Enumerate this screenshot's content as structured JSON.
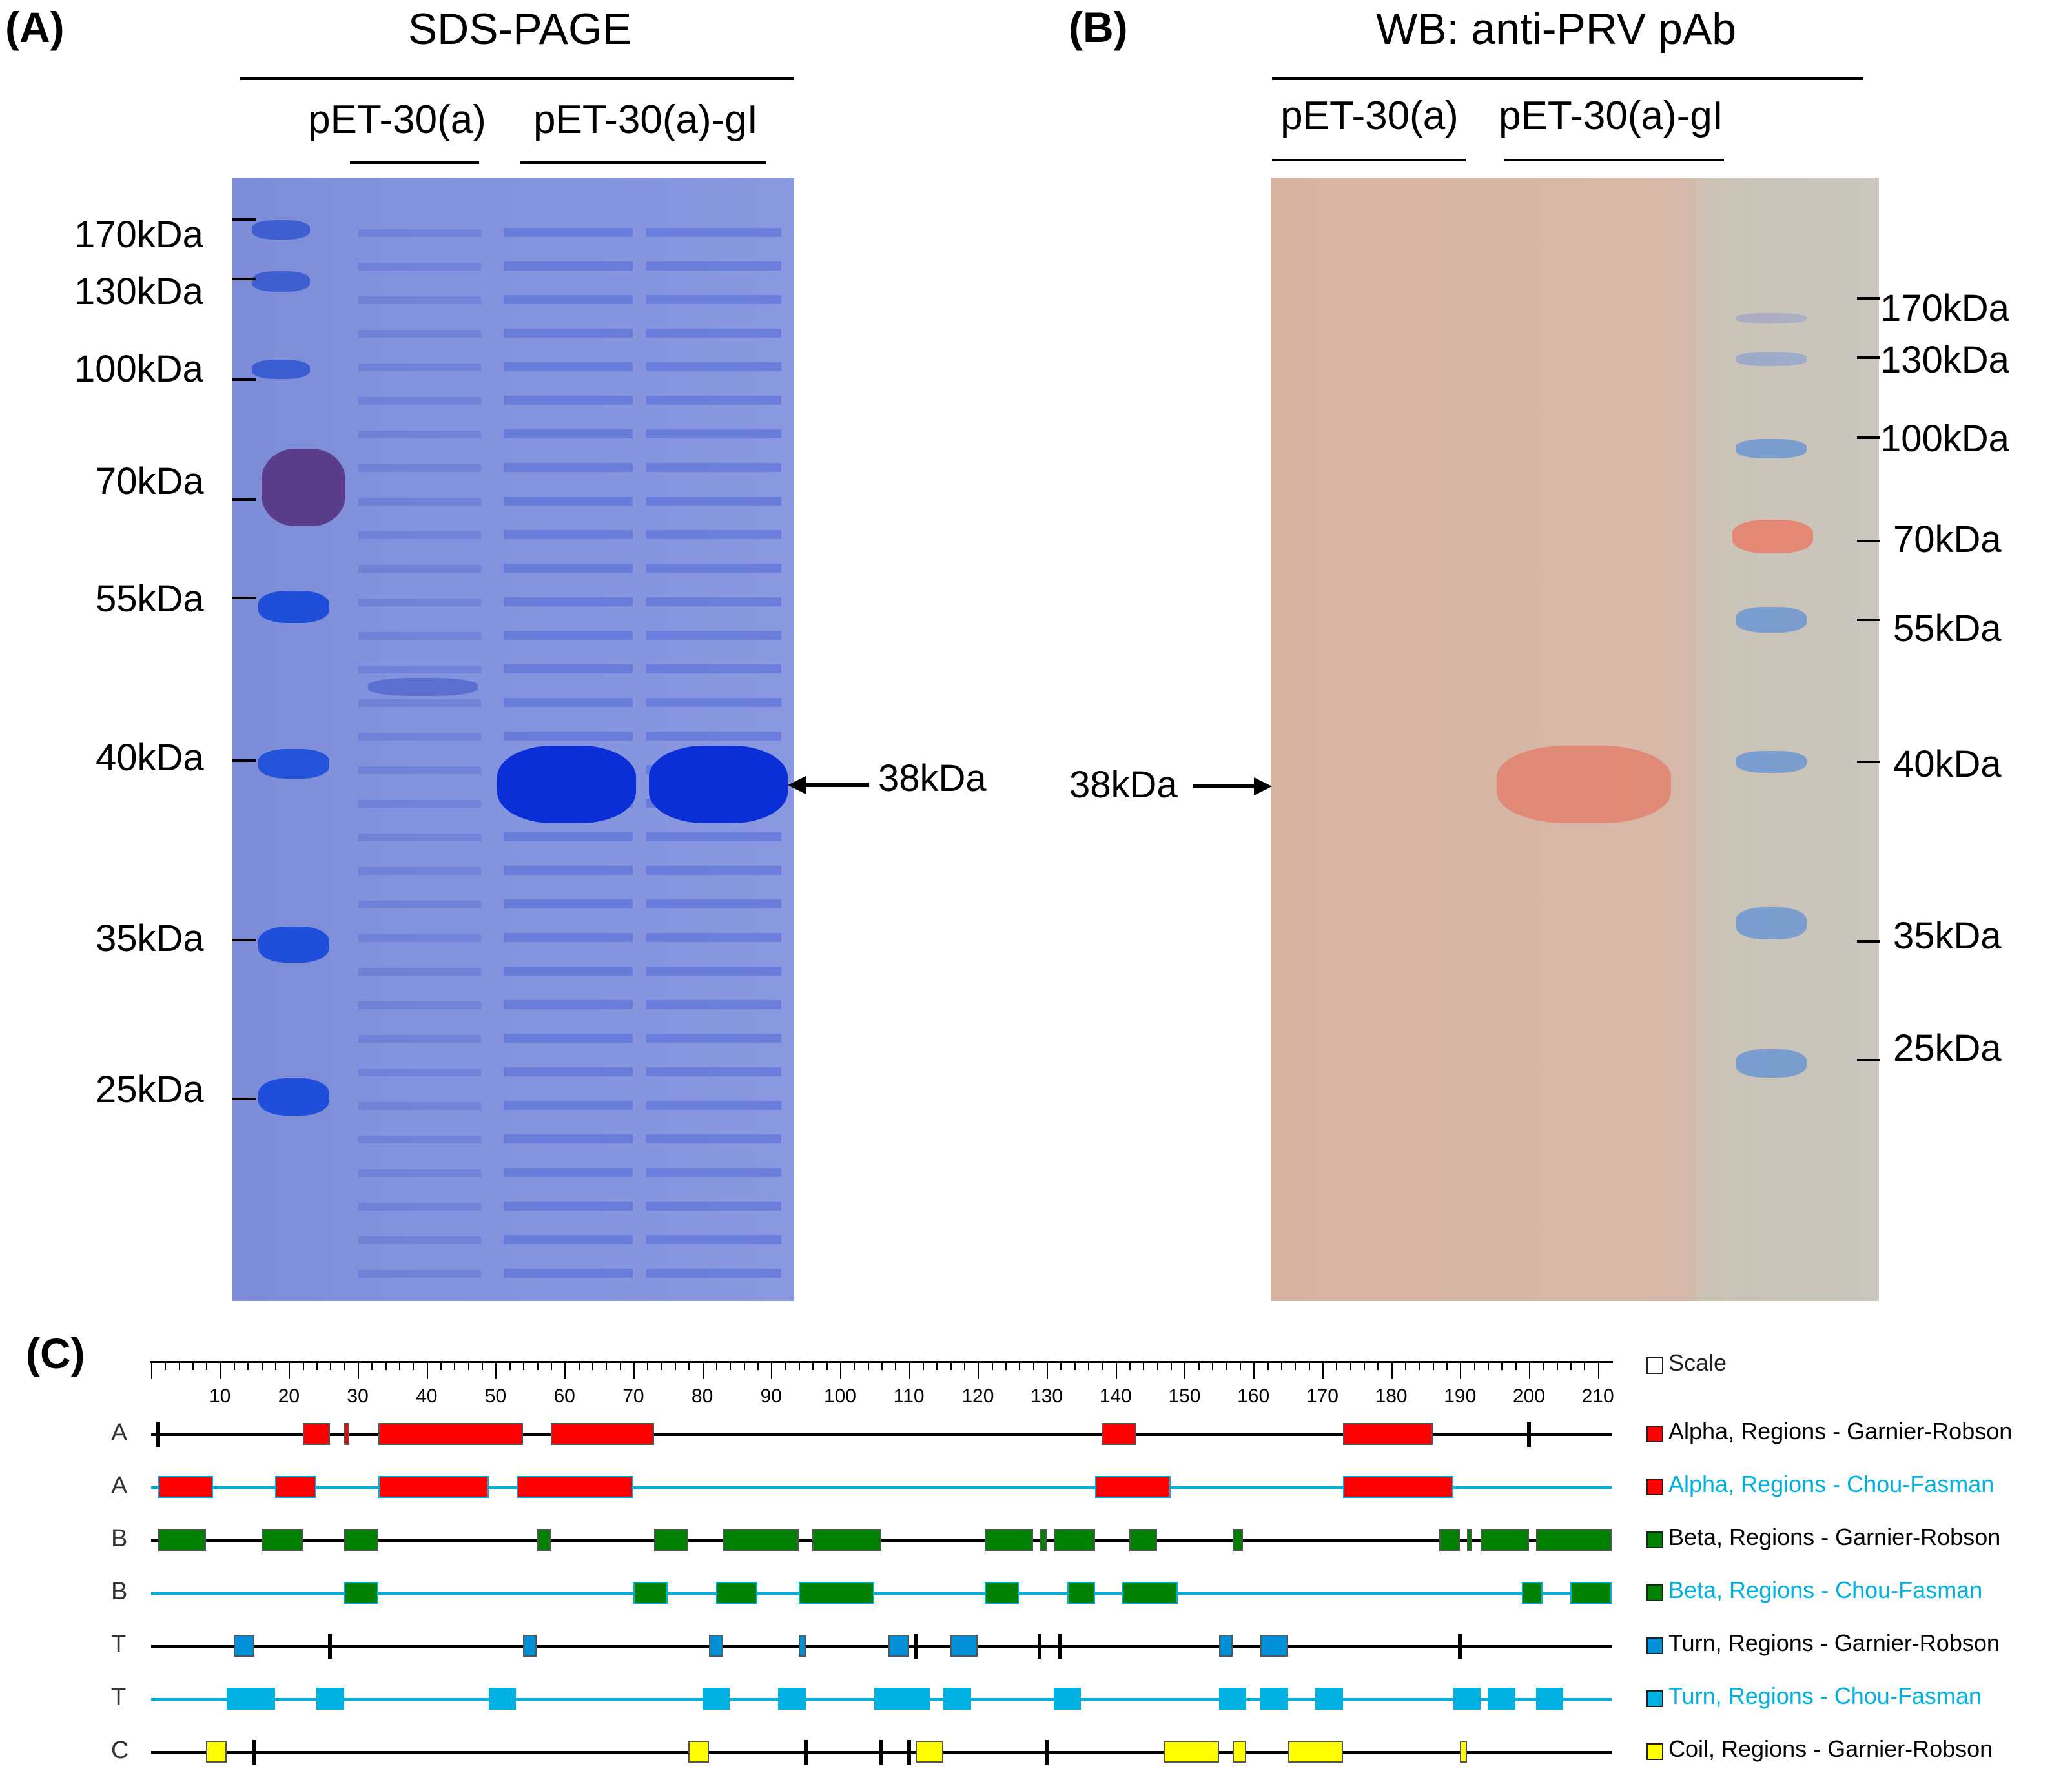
{
  "panel_a": {
    "letter": "(A)",
    "title": "SDS-PAGE",
    "lane_labels": [
      "pET-30(a)",
      "pET-30(a)-gI"
    ],
    "markers": [
      "170kDa",
      "130kDa",
      "100kDa",
      "70kDa",
      "55kDa",
      "40kDa",
      "35kDa",
      "25kDa"
    ],
    "arrow_label": "38kDa"
  },
  "panel_b": {
    "letter": "(B)",
    "title": "WB: anti-PRV pAb",
    "lane_labels": [
      "pET-30(a)",
      "pET-30(a)-gI"
    ],
    "markers": [
      "170kDa",
      "130kDa",
      "100kDa",
      "70kDa",
      "55kDa",
      "40kDa",
      "35kDa",
      "25kDa"
    ],
    "arrow_label": "38kDa"
  },
  "panel_c": {
    "letter": "(C)",
    "scale_ticks": [
      "10",
      "20",
      "30",
      "40",
      "50",
      "60",
      "70",
      "80",
      "90",
      "100",
      "110",
      "120",
      "130",
      "140",
      "150",
      "160",
      "170",
      "180",
      "190",
      "200",
      "210"
    ],
    "scale_max": 210,
    "tracks": [
      {
        "label": "A",
        "legend": "Alpha, Regions - Garnier-Robson",
        "line_color": "#000000",
        "fill": "#ff0000",
        "text_color": "#000000",
        "segments": [
          [
            22,
            26
          ],
          [
            28,
            28.8
          ],
          [
            33,
            54
          ],
          [
            58,
            73
          ],
          [
            138,
            143
          ],
          [
            173,
            186
          ]
        ],
        "marks": [
          1,
          200
        ]
      },
      {
        "label": "A",
        "legend": "Alpha, Regions - Chou-Fasman",
        "line_color": "#00b0e0",
        "fill": "#ff0000",
        "text_color": "#00b0e0",
        "segments": [
          [
            1,
            9
          ],
          [
            18,
            24
          ],
          [
            33,
            49
          ],
          [
            53,
            70
          ],
          [
            137,
            148
          ],
          [
            173,
            189
          ]
        ],
        "marks": []
      },
      {
        "label": "B",
        "legend": "Beta, Regions - Garnier-Robson",
        "line_color": "#000000",
        "fill": "#008000",
        "text_color": "#000000",
        "segments": [
          [
            1,
            8
          ],
          [
            16,
            22
          ],
          [
            28,
            33
          ],
          [
            56,
            58
          ],
          [
            73,
            78
          ],
          [
            83,
            94
          ],
          [
            96,
            106
          ],
          [
            121,
            128
          ],
          [
            129,
            130
          ],
          [
            131,
            137
          ],
          [
            142,
            146
          ],
          [
            157,
            158.5
          ],
          [
            187,
            190
          ],
          [
            191,
            191.8
          ],
          [
            193,
            200
          ],
          [
            201,
            212
          ]
        ],
        "marks": []
      },
      {
        "label": "B",
        "legend": "Beta, Regions - Chou-Fasman",
        "line_color": "#00b0e0",
        "fill": "#008000",
        "text_color": "#00b0e0",
        "segments": [
          [
            28,
            33
          ],
          [
            70,
            75
          ],
          [
            82,
            88
          ],
          [
            94,
            105
          ],
          [
            121,
            126
          ],
          [
            133,
            137
          ],
          [
            141,
            149
          ],
          [
            199,
            202
          ],
          [
            206,
            212
          ]
        ],
        "marks": []
      },
      {
        "label": "T",
        "legend": "Turn, Regions - Garnier-Robson",
        "line_color": "#000000",
        "fill": "#0090d8",
        "text_color": "#000000",
        "segments": [
          [
            12,
            15
          ],
          [
            54,
            56
          ],
          [
            81,
            83
          ],
          [
            94,
            95
          ],
          [
            107,
            110
          ],
          [
            116,
            120
          ],
          [
            155,
            157
          ],
          [
            161,
            165
          ]
        ],
        "marks": [
          26,
          111,
          129,
          132,
          190
        ]
      },
      {
        "label": "T",
        "legend": "Turn, Regions - Chou-Fasman",
        "line_color": "#00b0e0",
        "fill": "#00b0e0",
        "text_color": "#00b0e0",
        "segments": [
          [
            11,
            18
          ],
          [
            24,
            28
          ],
          [
            49,
            53
          ],
          [
            80,
            84
          ],
          [
            91,
            95
          ],
          [
            105,
            113
          ],
          [
            115,
            119
          ],
          [
            131,
            135
          ],
          [
            155,
            159
          ],
          [
            161,
            165
          ],
          [
            169,
            173
          ],
          [
            189,
            193
          ],
          [
            194,
            198
          ],
          [
            201,
            205
          ]
        ],
        "marks": []
      },
      {
        "label": "C",
        "legend": "Coil, Regions - Garnier-Robson",
        "line_color": "#000000",
        "fill": "#ffff00",
        "text_color": "#000000",
        "segments": [
          [
            8,
            11
          ],
          [
            78,
            81
          ],
          [
            111,
            115
          ],
          [
            147,
            155
          ],
          [
            157,
            159
          ],
          [
            165,
            173
          ],
          [
            190,
            191
          ]
        ],
        "marks": [
          15,
          95,
          106,
          110,
          130
        ]
      }
    ],
    "scale_legend": "Scale"
  }
}
